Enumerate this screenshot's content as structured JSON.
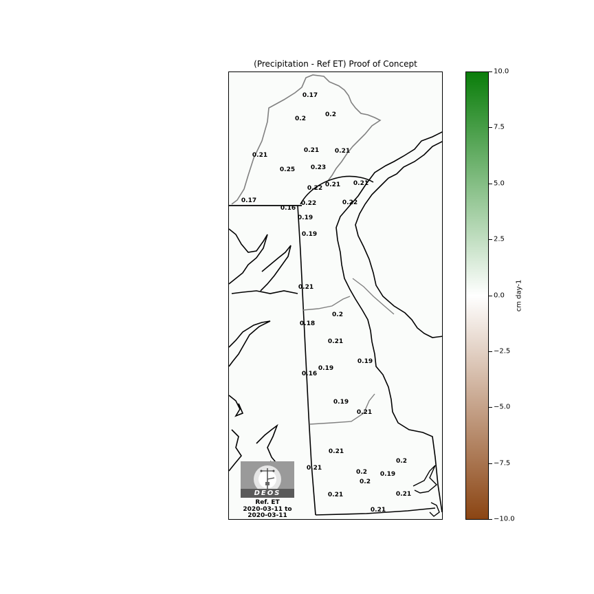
{
  "title": "(Precipitation - Ref ET) Proof of Concept",
  "colorbar": {
    "label": "cm day-1",
    "range": [
      -10.0,
      10.0
    ],
    "ticks": [
      "10.0",
      "7.5",
      "5.0",
      "2.5",
      "0.0",
      "−2.5",
      "−5.0",
      "−7.5",
      "−10.0"
    ],
    "colors": {
      "max": "#0a7d0a",
      "mid": "#ffffff",
      "min": "#8b4513"
    }
  },
  "logo": {
    "text": "DEOS"
  },
  "caption": {
    "line1": "Ref. ET",
    "line2": "2020-03-11 to",
    "line3": "2020-03-11"
  },
  "station_values": [
    "0.17",
    "0.2",
    "0.2",
    "0.21",
    "0.21",
    "0.21",
    "0.25",
    "0.23",
    "0.22",
    "0.21",
    "0.21",
    "0.17",
    "0.16",
    "0.22",
    "0.22",
    "0.19",
    "0.19",
    "0.21",
    "0.2",
    "0.18",
    "0.21",
    "0.19",
    "0.19",
    "0.16",
    "0.19",
    "0.21",
    "0.21",
    "0.21",
    "0.2",
    "0.2",
    "0.19",
    "0.2",
    "0.21",
    "0.21",
    "0.21"
  ]
}
